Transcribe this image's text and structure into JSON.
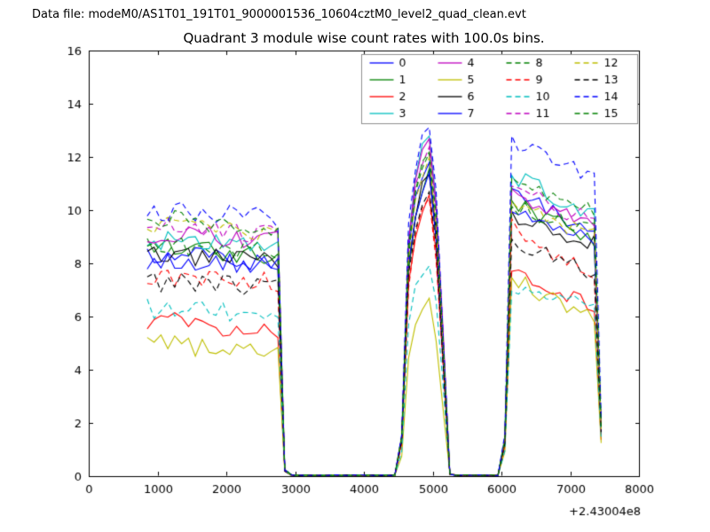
{
  "header": {
    "data_file_label": "Data file: modeM0/AS1T01_191T01_9000001536_10604cztM0_level2_quad_clean.evt"
  },
  "chart_data": {
    "type": "line",
    "title": "Quadrant 3 module wise count rates with 100.0s bins.",
    "xlabel": "",
    "ylabel": "",
    "x_offset_label": "+2.43004e8",
    "xlim": [
      0,
      8000
    ],
    "ylim": [
      0,
      16
    ],
    "x_ticks": [
      0,
      1000,
      2000,
      3000,
      4000,
      5000,
      6000,
      7000,
      8000
    ],
    "y_ticks": [
      0,
      2,
      4,
      6,
      8,
      10,
      12,
      14,
      16
    ],
    "grid": false,
    "axes": {
      "background": "#ffffff",
      "frame_color": "#000000",
      "tick_color": "#000000",
      "label_color": "#000000"
    },
    "legend": {
      "location": "upper center",
      "columns": 4,
      "border_color": "#8f8f8f",
      "entries": [
        "0",
        "1",
        "2",
        "3",
        "4",
        "5",
        "6",
        "7",
        "8",
        "9",
        "10",
        "11",
        "12",
        "13",
        "14",
        "15"
      ]
    },
    "envelope": {
      "x_start": 850,
      "x_end": 7450,
      "x_step": 100,
      "plateau1": [
        850,
        2750
      ],
      "gap1": [
        2950,
        4450
      ],
      "peak_profile": [
        [
          4550,
          0.12
        ],
        [
          4650,
          0.7
        ],
        [
          4750,
          0.87
        ],
        [
          4850,
          0.96
        ],
        [
          4950,
          1.0
        ],
        [
          5050,
          0.8
        ],
        [
          5150,
          0.42
        ]
      ],
      "peak_fall": 5250,
      "gap2": [
        5350,
        5950
      ],
      "seg3_rise": [
        6050,
        6150
      ],
      "seg3_span": [
        6150,
        7350
      ],
      "noise": {
        "plateau": 0.38,
        "peak": 0.28,
        "seg3": 0.34
      }
    },
    "series": [
      {
        "label": "0",
        "color": "#0000ff",
        "dash": false,
        "plateau1": [
          8.3,
          8.1
        ],
        "peak": 11.8,
        "seg3": [
          10.8,
          9.0
        ],
        "end": 1.6
      },
      {
        "label": "1",
        "color": "#008000",
        "dash": false,
        "plateau1": [
          8.6,
          8.3
        ],
        "peak": 11.4,
        "seg3": [
          10.3,
          8.9
        ],
        "end": 1.5
      },
      {
        "label": "2",
        "color": "#ff0000",
        "dash": false,
        "plateau1": [
          5.9,
          5.3
        ],
        "peak": 10.5,
        "seg3": [
          7.7,
          6.4
        ],
        "end": 1.3
      },
      {
        "label": "3",
        "color": "#00bfbf",
        "dash": false,
        "plateau1": [
          8.9,
          8.6
        ],
        "peak": 12.9,
        "seg3": [
          11.3,
          9.8
        ],
        "end": 1.8
      },
      {
        "label": "4",
        "color": "#bf00bf",
        "dash": false,
        "plateau1": [
          9.1,
          8.9
        ],
        "peak": 12.6,
        "seg3": [
          10.6,
          9.3
        ],
        "end": 1.7
      },
      {
        "label": "5",
        "color": "#bfbf00",
        "dash": false,
        "plateau1": [
          5.1,
          4.5
        ],
        "peak": 6.6,
        "seg3": [
          7.4,
          6.0
        ],
        "end": 1.2
      },
      {
        "label": "6",
        "color": "#000000",
        "dash": false,
        "plateau1": [
          8.3,
          8.2
        ],
        "peak": 11.3,
        "seg3": [
          9.7,
          8.8
        ],
        "end": 1.5
      },
      {
        "label": "7",
        "color": "#0000ff",
        "dash": false,
        "plateau1": [
          8.1,
          7.9
        ],
        "peak": 11.2,
        "seg3": [
          10.0,
          8.9
        ],
        "end": 1.5
      },
      {
        "label": "8",
        "color": "#008000",
        "dash": true,
        "plateau1": [
          8.7,
          8.4
        ],
        "peak": 12.0,
        "seg3": [
          10.1,
          9.3
        ],
        "end": 1.6
      },
      {
        "label": "9",
        "color": "#ff0000",
        "dash": true,
        "plateau1": [
          7.6,
          7.3
        ],
        "peak": 10.3,
        "seg3": [
          9.4,
          7.5
        ],
        "end": 1.4
      },
      {
        "label": "10",
        "color": "#00bfbf",
        "dash": true,
        "plateau1": [
          6.3,
          6.1
        ],
        "peak": 8.1,
        "seg3": [
          6.9,
          6.4
        ],
        "end": 1.3
      },
      {
        "label": "11",
        "color": "#bf00bf",
        "dash": true,
        "plateau1": [
          9.4,
          9.1
        ],
        "peak": 12.4,
        "seg3": [
          10.9,
          9.5
        ],
        "end": 1.7
      },
      {
        "label": "12",
        "color": "#bfbf00",
        "dash": true,
        "plateau1": [
          9.5,
          9.2
        ],
        "peak": 11.9,
        "seg3": [
          10.2,
          9.0
        ],
        "end": 1.6
      },
      {
        "label": "13",
        "color": "#000000",
        "dash": true,
        "plateau1": [
          7.3,
          7.1
        ],
        "peak": 10.7,
        "seg3": [
          8.9,
          7.6
        ],
        "end": 1.4
      },
      {
        "label": "14",
        "color": "#0000ff",
        "dash": true,
        "plateau1": [
          10.0,
          9.7
        ],
        "peak": 13.3,
        "seg3": [
          12.6,
          11.2
        ],
        "end": 2.0
      },
      {
        "label": "15",
        "color": "#008000",
        "dash": true,
        "plateau1": [
          9.7,
          9.4
        ],
        "peak": 12.4,
        "seg3": [
          11.0,
          9.9
        ],
        "end": 1.8
      }
    ]
  }
}
